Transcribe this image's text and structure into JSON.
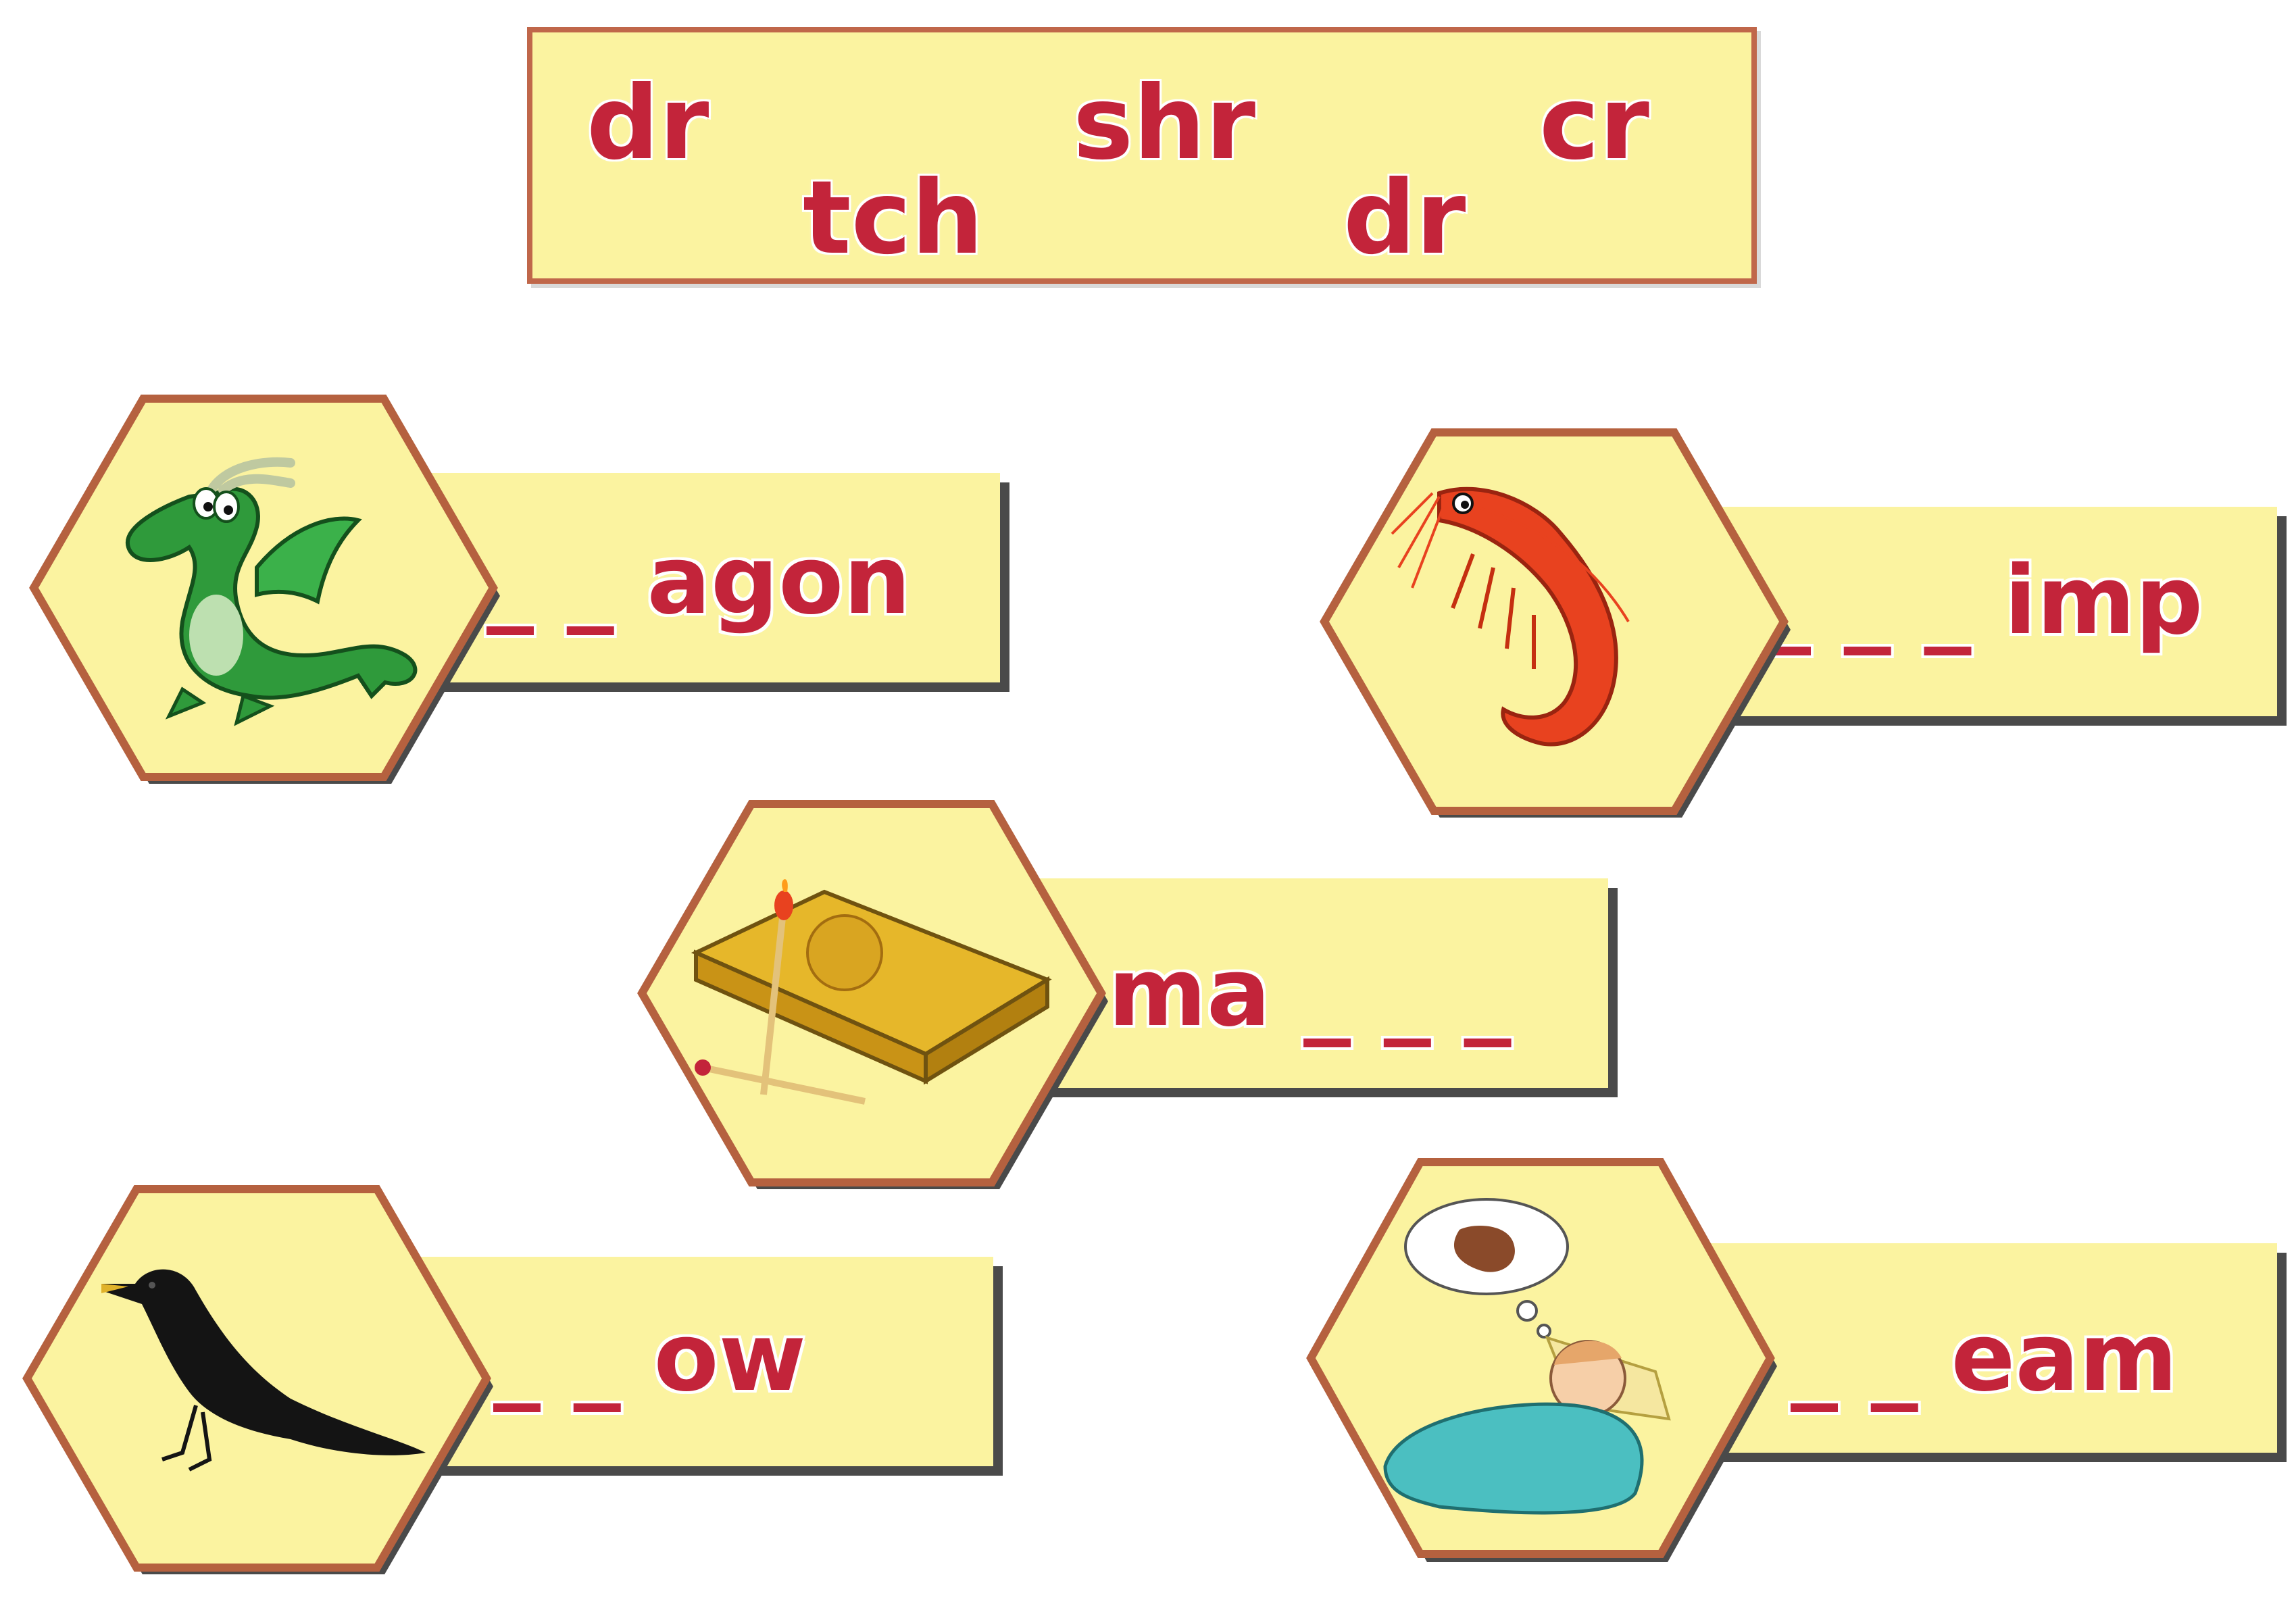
{
  "word_bank": {
    "words": [
      "dr",
      "shr",
      "cr",
      "tch",
      "dr"
    ]
  },
  "cards": [
    {
      "picture": "dragon-icon",
      "text": "_ _ agon"
    },
    {
      "picture": "shrimp-icon",
      "text": "_ _ _ imp"
    },
    {
      "picture": "matchbox-icon",
      "text": "ma _ _ _"
    },
    {
      "picture": "crow-icon",
      "text": "_ _ ow"
    },
    {
      "picture": "sleeping-child-icon",
      "text": "_ _ eam"
    }
  ],
  "colors": {
    "card_fill": "#fbf3a0",
    "hex_border": "#b5613f",
    "letter_red": "#c3243a",
    "shadow": "#4a4a4a"
  }
}
